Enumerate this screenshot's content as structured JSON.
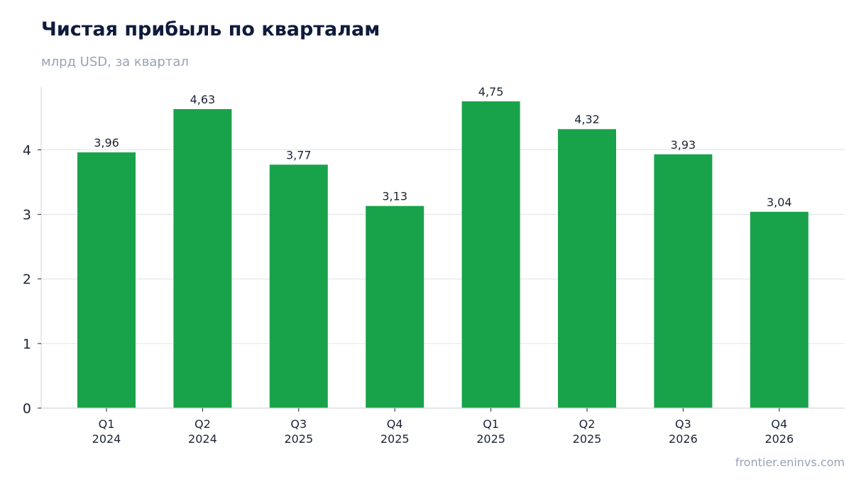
{
  "header": {
    "title": "Чистая прибыль по кварталам",
    "subtitle": "млрд USD, за квартал"
  },
  "footer": {
    "source": "frontier.eninvs.com"
  },
  "colors": {
    "bar": "#18a34a",
    "grid": "#e6e8ec",
    "axis": "#d3d6dc",
    "text": "#1c2333"
  },
  "chart_data": {
    "type": "bar",
    "categories": [
      [
        "Q1",
        "2024"
      ],
      [
        "Q2",
        "2024"
      ],
      [
        "Q3",
        "2025"
      ],
      [
        "Q4",
        "2025"
      ],
      [
        "Q1",
        "2025"
      ],
      [
        "Q2",
        "2025"
      ],
      [
        "Q3",
        "2026"
      ],
      [
        "Q4",
        "2026"
      ]
    ],
    "values": [
      3.96,
      4.63,
      3.77,
      3.13,
      4.75,
      4.32,
      3.93,
      3.04
    ],
    "data_labels": [
      "3,96",
      "4,63",
      "3,77",
      "3,13",
      "4,75",
      "4,32",
      "3,93",
      "3,04"
    ],
    "title": "Чистая прибыль по кварталам",
    "subtitle": "млрд USD, за квартал",
    "xlabel": "",
    "ylabel": "",
    "yticks": [
      0,
      1,
      2,
      3,
      4
    ],
    "ylim": [
      0,
      5
    ],
    "grid": true,
    "legend": "none"
  }
}
